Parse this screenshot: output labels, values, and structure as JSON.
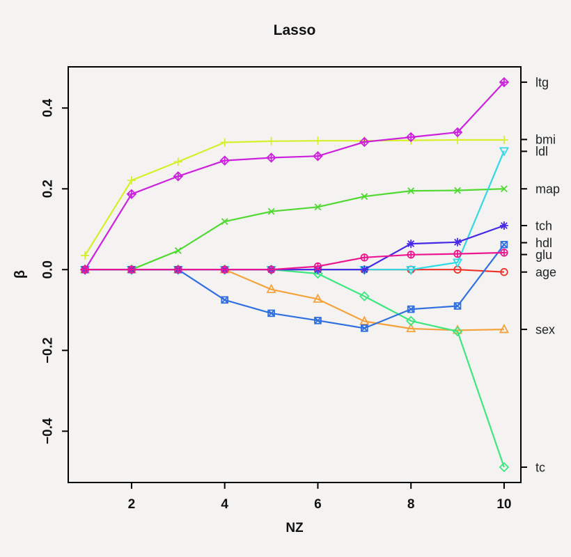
{
  "chart_data": {
    "type": "line",
    "title": "Lasso",
    "xlabel": "NZ",
    "ylabel": "β",
    "x": [
      1,
      2,
      3,
      4,
      5,
      6,
      7,
      8,
      9,
      10
    ],
    "xlim": [
      0.64,
      10.36
    ],
    "ylim": [
      -0.527,
      0.502
    ],
    "xticks": [
      2,
      4,
      6,
      8,
      10
    ],
    "xtick_labels": [
      "2",
      "4",
      "6",
      "8",
      "10"
    ],
    "yticks": [
      -0.4,
      -0.2,
      0.0,
      0.2,
      0.4
    ],
    "ytick_labels": [
      "−0.4",
      "−0.2",
      "0.0",
      "0.2",
      "0.4"
    ],
    "grid": false,
    "legend_position": "right-axis-labels",
    "background_color": "#f4f3f2",
    "box_color": "#000000",
    "series": [
      {
        "name": "age",
        "color": "#ee3229",
        "marker": "circle",
        "values": [
          0,
          0,
          0,
          0,
          0,
          0,
          0,
          0,
          0,
          -0.006
        ]
      },
      {
        "name": "sex",
        "color": "#f5a23c",
        "marker": "triangle-up",
        "values": [
          0,
          0,
          0,
          0,
          -0.049,
          -0.073,
          -0.128,
          -0.146,
          -0.15,
          -0.148
        ]
      },
      {
        "name": "bmi",
        "color": "#d6ef2a",
        "marker": "plus",
        "values": [
          0.035,
          0.221,
          0.267,
          0.315,
          0.318,
          0.319,
          0.319,
          0.32,
          0.321,
          0.321
        ]
      },
      {
        "name": "map",
        "color": "#4fd930",
        "marker": "x",
        "values": [
          0,
          0,
          0.047,
          0.119,
          0.144,
          0.155,
          0.181,
          0.195,
          0.196,
          0.2
        ]
      },
      {
        "name": "tc",
        "color": "#3ee67e",
        "marker": "diamond",
        "values": [
          0,
          0,
          0,
          0,
          0,
          -0.01,
          -0.066,
          -0.127,
          -0.153,
          -0.489
        ]
      },
      {
        "name": "ldl",
        "color": "#2fd9e6",
        "marker": "triangle-down",
        "values": [
          0,
          0,
          0,
          0,
          0,
          0,
          0,
          0,
          0.018,
          0.294
        ]
      },
      {
        "name": "hdl",
        "color": "#2f6fe0",
        "marker": "square-x",
        "values": [
          0,
          0,
          0,
          -0.075,
          -0.108,
          -0.126,
          -0.145,
          -0.098,
          -0.09,
          0.062
        ]
      },
      {
        "name": "tch",
        "color": "#4628e8",
        "marker": "asterisk",
        "values": [
          0,
          0,
          0,
          0,
          0,
          0,
          0,
          0.064,
          0.068,
          0.109
        ]
      },
      {
        "name": "ltg",
        "color": "#cc22dd",
        "marker": "diamond-plus",
        "values": [
          0,
          0.187,
          0.231,
          0.27,
          0.277,
          0.281,
          0.316,
          0.328,
          0.34,
          0.464
        ]
      },
      {
        "name": "glu",
        "color": "#ee1690",
        "marker": "circle-plus",
        "values": [
          0,
          0,
          0,
          0,
          0,
          0.008,
          0.03,
          0.037,
          0.039,
          0.042
        ]
      }
    ]
  }
}
